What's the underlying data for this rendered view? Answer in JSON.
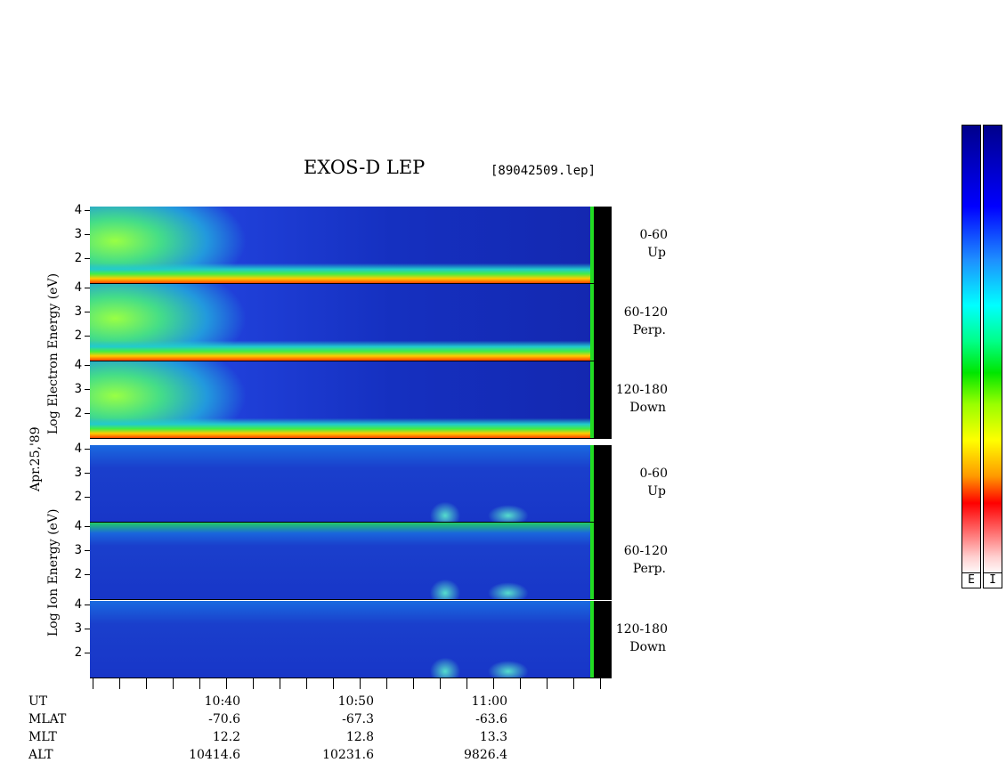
{
  "title": "EXOS-D LEP",
  "filename": "[89042509.lep]",
  "date_label": "Apr.25,'89",
  "electron_axis_label": "Log   Electron   Energy  (eV)",
  "ion_axis_label": "Log    Ion    Energy  (eV)",
  "pitch_labels": [
    {
      "range": "0-60",
      "dir": "Up"
    },
    {
      "range": "60-120",
      "dir": "Perp."
    },
    {
      "range": "120-180",
      "dir": "Down"
    },
    {
      "range": "0-60",
      "dir": "Up"
    },
    {
      "range": "60-120",
      "dir": "Perp."
    },
    {
      "range": "120-180",
      "dir": "Down"
    }
  ],
  "ytick_labels": [
    "4",
    "3",
    "2"
  ],
  "colorbar_labels": [
    "E",
    "I"
  ],
  "colors": {
    "dark_blue": "#00008b",
    "blue": "#1e32ff",
    "cyan": "#00ffff",
    "green": "#00e600",
    "yellow": "#ffff00",
    "orange": "#ff9900",
    "red": "#ff0000",
    "pink": "#ffd0d0"
  },
  "axis_rows": [
    {
      "name": "UT",
      "values": [
        "10:40",
        "10:50",
        "11:00"
      ]
    },
    {
      "name": "MLAT",
      "values": [
        "-70.6",
        "-67.3",
        "-63.6"
      ]
    },
    {
      "name": "MLT",
      "values": [
        "12.2",
        "12.8",
        "13.3"
      ]
    },
    {
      "name": "ALT",
      "values": [
        "10414.6",
        "10231.6",
        "9826.4"
      ]
    }
  ],
  "chart_data": {
    "type": "heatmap",
    "title": "EXOS-D LEP",
    "subtitle": "[89042509.lep]",
    "xlabel": "",
    "x_ticks": [
      "10:40",
      "10:50",
      "11:00"
    ],
    "ylabel_electron": "Log   Electron   Energy  (eV)",
    "ylabel_ion": "Log    Ion    Energy  (eV)",
    "ylim": [
      1.0,
      4.2
    ],
    "yticks": [
      2,
      3,
      4
    ],
    "panels": [
      {
        "species": "Electron",
        "pitch": "0-60",
        "dir": "Up"
      },
      {
        "species": "Electron",
        "pitch": "60-120",
        "dir": "Perp."
      },
      {
        "species": "Electron",
        "pitch": "120-180",
        "dir": "Down"
      },
      {
        "species": "Ion",
        "pitch": "0-60",
        "dir": "Up"
      },
      {
        "species": "Ion",
        "pitch": "60-120",
        "dir": "Perp."
      },
      {
        "species": "Ion",
        "pitch": "120-180",
        "dir": "Down"
      }
    ],
    "colorbar_labels": [
      "E",
      "I"
    ]
  }
}
